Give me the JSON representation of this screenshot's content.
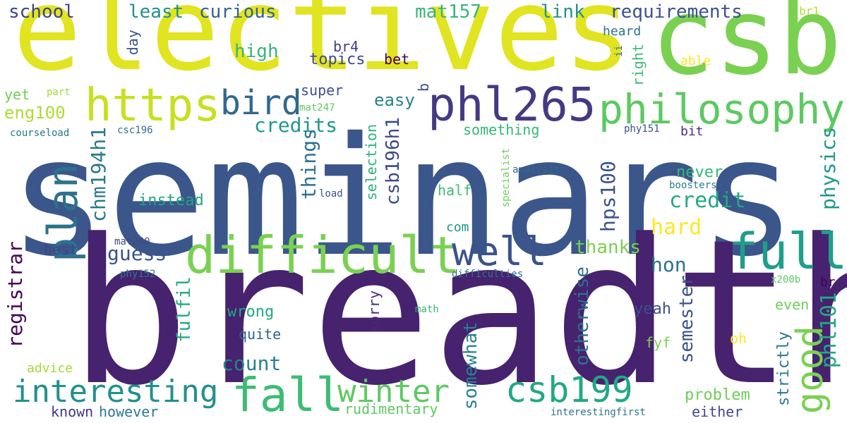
{
  "words": {
    "seminars": "seminars",
    "breadth": "breadth",
    "electives": "electives",
    "csb": "csb",
    "phl265": "phl265",
    "philosophy": "philosophy",
    "https": "https",
    "difficult": "difficult",
    "full": "full",
    "well": "well",
    "plan": "plan",
    "bird": "bird",
    "interesting": "interesting",
    "fall": "fall",
    "winter": "winter",
    "csb199": "csb199",
    "good": "good",
    "school": "school",
    "least": "least",
    "curious": "curious",
    "mat157": "mat157",
    "link": "link",
    "requirements": "requirements",
    "br1": "br1",
    "heard": "heard",
    "high": "high",
    "br4": "br4",
    "topics": "topics",
    "bet": "bet",
    "able": "able",
    "super": "super",
    "easy": "easy",
    "eng100": "eng100",
    "yet": "yet",
    "part": "part",
    "mat247": "mat247",
    "credits": "credits",
    "something": "something",
    "phy151": "phy151",
    "bit": "bit",
    "courseload": "courseload",
    "csc196": "csc196",
    "analysis": "analysis",
    "never": "never",
    "boosters": "boosters",
    "half": "half",
    "load": "load",
    "instead": "instead",
    "credit": "credit",
    "com": "com",
    "hard": "hard",
    "mat240": "mat240",
    "thanks": "thanks",
    "guess": "guess",
    "best": "best",
    "hon": "hon",
    "phy152": "phy152",
    "difficulties": "difficulties",
    "x200b": "x200b",
    "br": "br",
    "even": "even",
    "yeah": "yeah",
    "math": "math",
    "wrong": "wrong",
    "quite": "quite",
    "oh": "oh",
    "fyf": "fyf",
    "count": "count",
    "advice": "advice",
    "problem": "problem",
    "known": "known",
    "however": "however",
    "rudimentary": "rudimentary",
    "interestingfirst": "interestingfirst",
    "either": "either",
    "day": "day",
    "ii": "ii",
    "right": "right",
    "b": "b",
    "chm194h1": "chm194h1",
    "things": "things",
    "csb196h1": "csb196h1",
    "selection": "selection",
    "specialist": "specialist",
    "hps100": "hps100",
    "physics": "physics",
    "registrar": "registrar",
    "fulfil": "fulfil",
    "otherwise": "otherwise",
    "semester": "semester",
    "phl101": "phl101",
    "sorry": "sorry",
    "somewhat": "somewhat",
    "strictly": "strictly"
  },
  "colors": {
    "background": "#ffffff",
    "palette": "viridis"
  }
}
